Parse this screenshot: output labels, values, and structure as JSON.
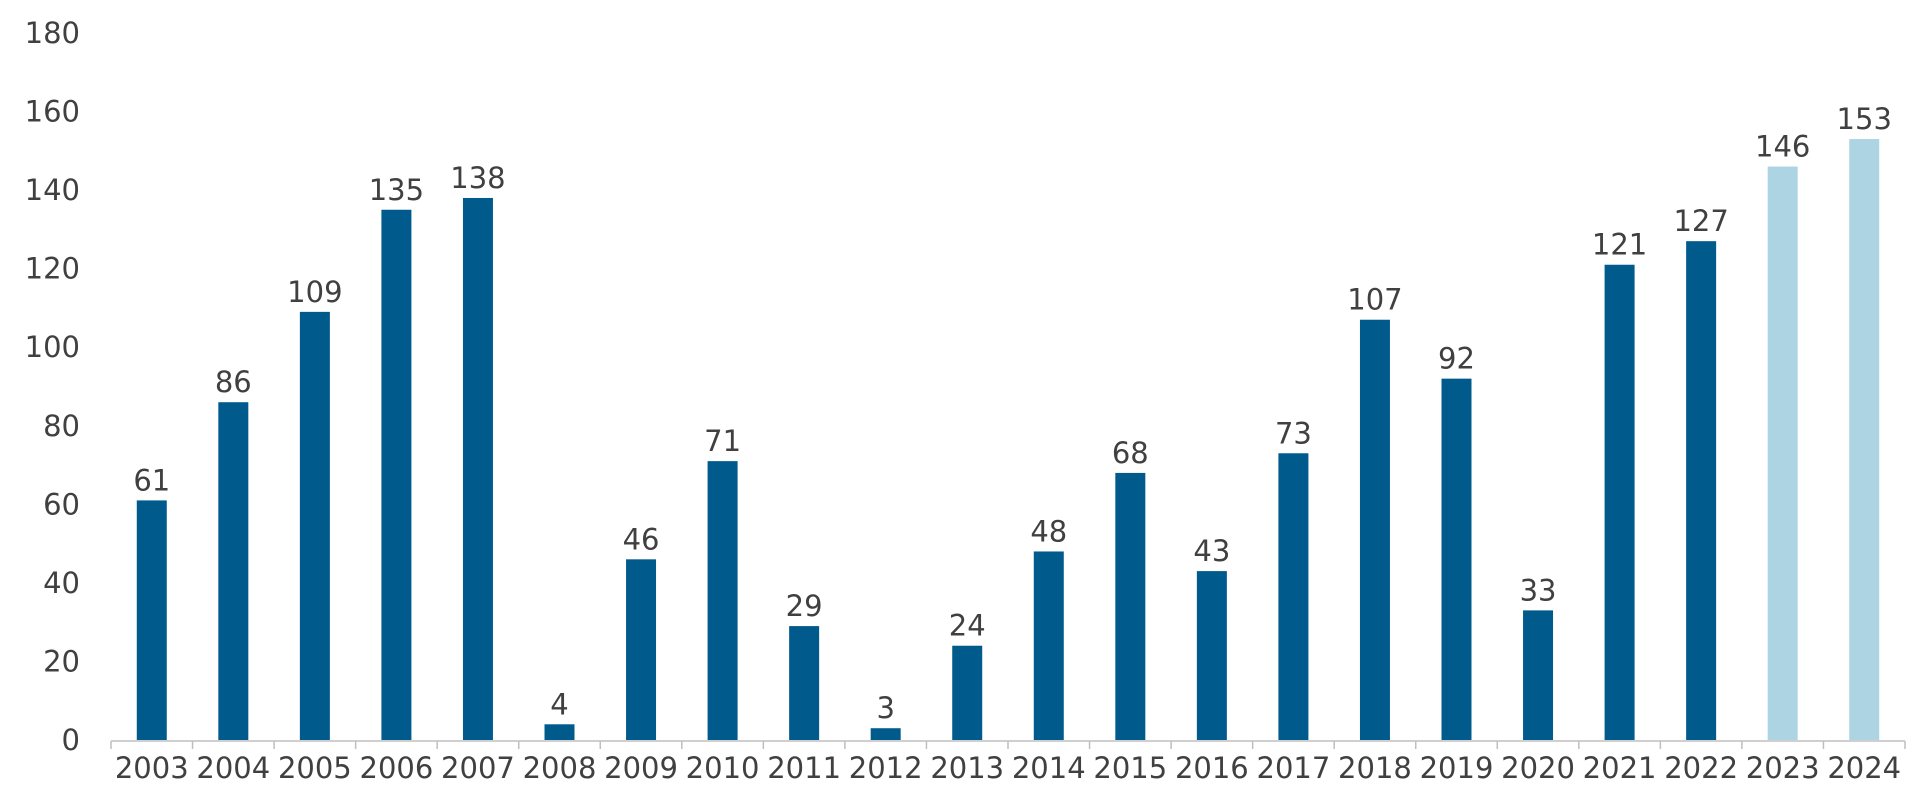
{
  "chart_data": {
    "type": "bar",
    "categories": [
      "2003",
      "2004",
      "2005",
      "2006",
      "2007",
      "2008",
      "2009",
      "2010",
      "2011",
      "2012",
      "2013",
      "2014",
      "2015",
      "2016",
      "2017",
      "2018",
      "2019",
      "2020",
      "2021",
      "2022",
      "2023",
      "2024"
    ],
    "values": [
      61,
      86,
      109,
      135,
      138,
      4,
      46,
      71,
      29,
      3,
      24,
      48,
      68,
      43,
      73,
      107,
      92,
      33,
      121,
      127,
      146,
      153
    ],
    "forecast_categories": [
      "2023",
      "2024"
    ],
    "title": "",
    "xlabel": "",
    "ylabel": "",
    "ylim": [
      0,
      180
    ],
    "yticks": [
      0,
      20,
      40,
      60,
      80,
      100,
      120,
      140,
      160,
      180
    ],
    "grid": false,
    "legend": "none",
    "colors": {
      "actual": "#005a8c",
      "forecast": "#acd4e3",
      "text": "#404040",
      "axis": "#bfbfbf"
    }
  }
}
